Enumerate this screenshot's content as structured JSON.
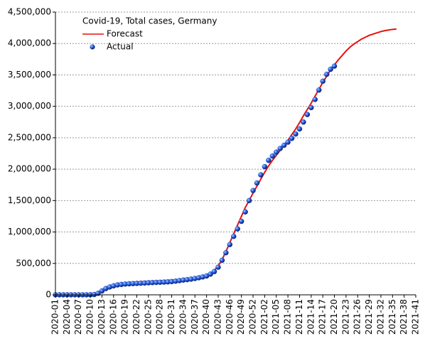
{
  "chart_data": {
    "type": "line",
    "title": "Covid-19, Total cases, Germany",
    "categories": [
      "2020-01",
      null,
      null,
      "2020-04",
      null,
      null,
      "2020-07",
      null,
      null,
      "2020-10",
      null,
      null,
      "2020-13",
      null,
      null,
      "2020-16",
      null,
      null,
      "2020-19",
      null,
      null,
      "2020-22",
      null,
      null,
      "2020-25",
      null,
      null,
      "2020-28",
      null,
      null,
      "2020-31",
      null,
      null,
      "2020-34",
      null,
      null,
      "2020-37",
      null,
      null,
      "2020-40",
      null,
      null,
      "2020-43",
      null,
      null,
      "2020-46",
      null,
      null,
      "2020-49",
      null,
      null,
      "2020-52",
      null,
      null,
      "2021-02",
      null,
      null,
      "2021-05",
      null,
      null,
      "2021-08",
      null,
      null,
      "2021-11",
      null,
      null,
      "2021-14",
      null,
      null,
      "2021-17",
      null,
      null,
      "2021-20",
      null,
      null,
      "2021-23",
      null,
      null,
      "2021-26",
      null,
      null,
      "2021-29",
      null,
      null,
      "2021-32",
      null,
      null,
      "2021-35",
      null,
      null,
      "2021-38",
      null,
      null,
      "2021-41"
    ],
    "series": [
      {
        "name": "Forecast",
        "color": "#e8100c",
        "style": "line",
        "values": [
          0,
          0,
          0,
          0,
          0,
          0,
          0,
          0,
          5000,
          10000,
          20000,
          40000,
          70000,
          100000,
          130000,
          150000,
          165000,
          178000,
          188000,
          195000,
          200000,
          204000,
          208000,
          212000,
          215000,
          218000,
          221000,
          224000,
          227000,
          230000,
          234000,
          238000,
          243000,
          248000,
          254000,
          261000,
          269000,
          279000,
          292000,
          310000,
          340000,
          390000,
          460000,
          560000,
          690000,
          830000,
          970000,
          1110000,
          1250000,
          1390000,
          1500000,
          1620000,
          1730000,
          1840000,
          1950000,
          2050000,
          2140000,
          2220000,
          2300000,
          2380000,
          2460000,
          2550000,
          2640000,
          2740000,
          2850000,
          2950000,
          3050000,
          3160000,
          3270000,
          3380000,
          3480000,
          3580000,
          3660000,
          3740000,
          3810000,
          3880000,
          3940000,
          3990000,
          4030000,
          4070000,
          4100000,
          4130000,
          4150000,
          4170000,
          4190000,
          4205000,
          4215000,
          4225000,
          4230000,
          null,
          null,
          null,
          null,
          null
        ]
      },
      {
        "name": "Actual",
        "color": "#1a4fd0",
        "style": "marker",
        "values": [
          0,
          0,
          0,
          0,
          0,
          0,
          0,
          0,
          0,
          1000,
          5000,
          24000,
          62000,
          100000,
          125000,
          143000,
          158000,
          165000,
          172000,
          176000,
          179000,
          182000,
          185000,
          188000,
          192000,
          195000,
          198000,
          200000,
          203000,
          206000,
          211000,
          218000,
          226000,
          235000,
          242000,
          250000,
          260000,
          272000,
          285000,
          300000,
          330000,
          370000,
          440000,
          550000,
          670000,
          800000,
          930000,
          1050000,
          1170000,
          1320000,
          1500000,
          1660000,
          1780000,
          1910000,
          2040000,
          2140000,
          2210000,
          2270000,
          2330000,
          2380000,
          2430000,
          2490000,
          2560000,
          2640000,
          2750000,
          2870000,
          2980000,
          3110000,
          3260000,
          3400000,
          3510000,
          3590000,
          3640000,
          null,
          null,
          null,
          null,
          null,
          null,
          null,
          null,
          null,
          null,
          null,
          null,
          null,
          null,
          null,
          null,
          null,
          null,
          null,
          null,
          null
        ]
      }
    ],
    "ylim": [
      0,
      4500000
    ],
    "yticks": [
      {
        "value": 0,
        "label": "0"
      },
      {
        "value": 500000,
        "label": "500,000"
      },
      {
        "value": 1000000,
        "label": "1,000,000"
      },
      {
        "value": 1500000,
        "label": "1,500,000"
      },
      {
        "value": 2000000,
        "label": "2,000,000"
      },
      {
        "value": 2500000,
        "label": "2,500,000"
      },
      {
        "value": 3000000,
        "label": "3,000,000"
      },
      {
        "value": 3500000,
        "label": "3,500,000"
      },
      {
        "value": 4000000,
        "label": "4,000,000"
      },
      {
        "value": 4500000,
        "label": "4,500,000"
      }
    ],
    "grid": true
  }
}
